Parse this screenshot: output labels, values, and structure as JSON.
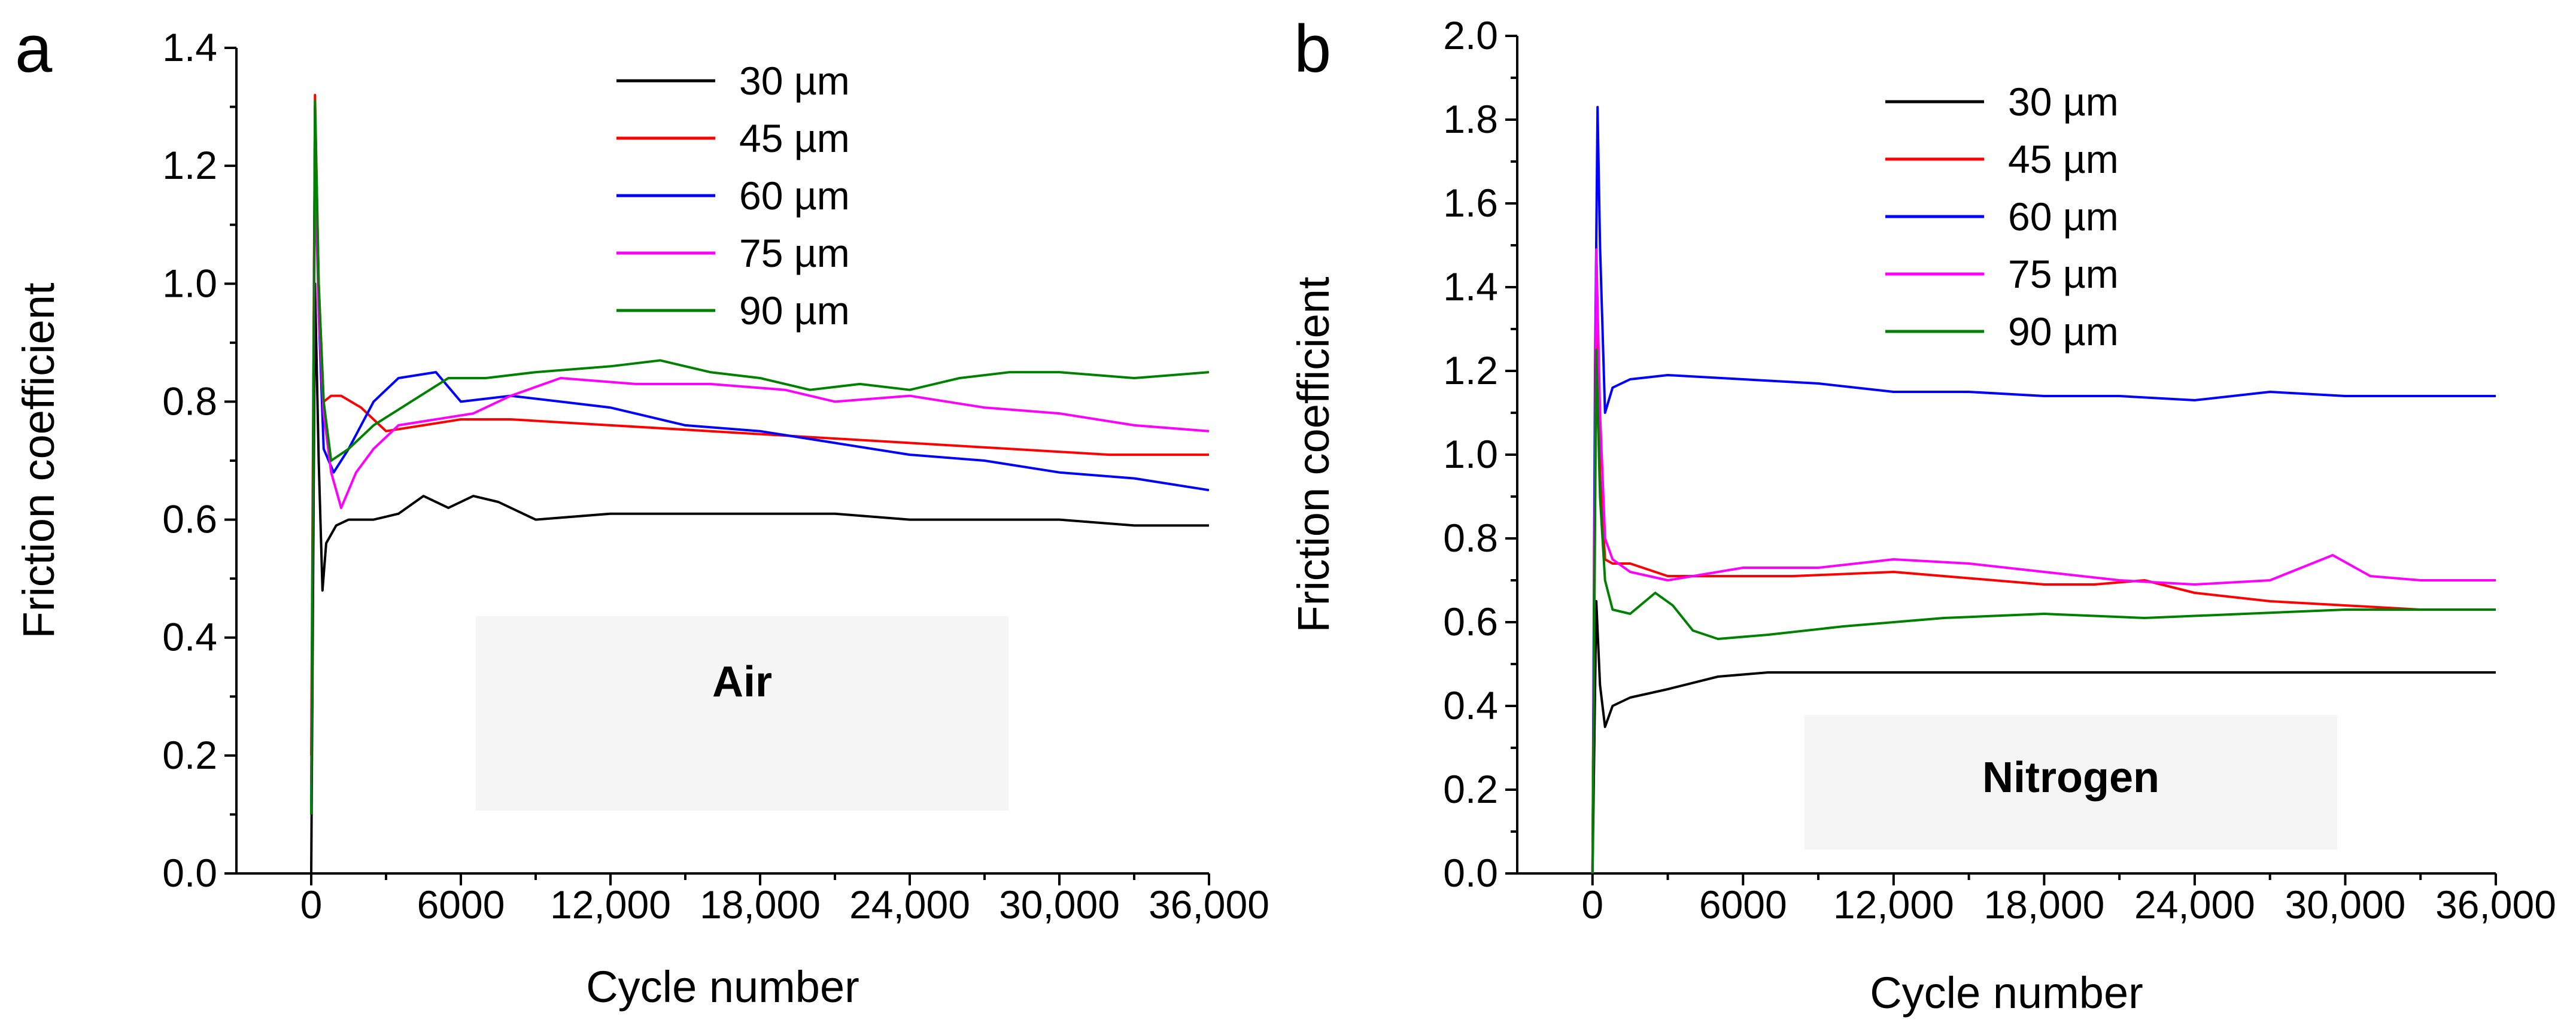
{
  "chart_data": [
    {
      "type": "line",
      "panel": "a",
      "xlabel": "Cycle number",
      "ylabel": "Friction coefficient",
      "xlim": [
        -3000,
        36000
      ],
      "ylim": [
        0,
        1.4
      ],
      "xticks": [
        0,
        6000,
        12000,
        18000,
        24000,
        30000,
        36000
      ],
      "xtick_labels": [
        "0",
        "6000",
        "12,000",
        "18,000",
        "24,000",
        "30,000",
        "36,000"
      ],
      "yticks": [
        0.0,
        0.2,
        0.4,
        0.6,
        0.8,
        1.0,
        1.2,
        1.4
      ],
      "ytick_labels": [
        "0.0",
        "0.2",
        "0.4",
        "0.6",
        "0.8",
        "1.0",
        "1.2",
        "1.4"
      ],
      "annotation": "Air",
      "legend_position": "top-right",
      "grid": false,
      "series": [
        {
          "name": "30 µm",
          "color": "#000000",
          "x": [
            0,
            150,
            300,
            450,
            600,
            1000,
            1500,
            2500,
            3500,
            4500,
            5500,
            6500,
            7500,
            9000,
            12000,
            15000,
            18000,
            21000,
            24000,
            27000,
            30000,
            33000,
            36000
          ],
          "y": [
            0.0,
            1.0,
            0.7,
            0.48,
            0.56,
            0.59,
            0.6,
            0.6,
            0.61,
            0.64,
            0.62,
            0.64,
            0.63,
            0.6,
            0.61,
            0.61,
            0.61,
            0.61,
            0.6,
            0.6,
            0.6,
            0.59,
            0.59
          ]
        },
        {
          "name": "45 µm",
          "color": "#ff0000",
          "x": [
            0,
            150,
            300,
            500,
            800,
            1200,
            2000,
            3000,
            4500,
            6000,
            8000,
            12000,
            16000,
            20000,
            24000,
            28000,
            32000,
            36000
          ],
          "y": [
            0.2,
            1.32,
            1.0,
            0.8,
            0.81,
            0.81,
            0.79,
            0.75,
            0.76,
            0.77,
            0.77,
            0.76,
            0.75,
            0.74,
            0.73,
            0.72,
            0.71,
            0.71
          ]
        },
        {
          "name": "60 µm",
          "color": "#0000ff",
          "x": [
            0,
            150,
            300,
            500,
            900,
            1500,
            2500,
            3500,
            5000,
            6000,
            8000,
            10000,
            12000,
            15000,
            18000,
            21000,
            24000,
            27000,
            30000,
            33000,
            36000
          ],
          "y": [
            0.1,
            1.3,
            0.95,
            0.72,
            0.68,
            0.72,
            0.8,
            0.84,
            0.85,
            0.8,
            0.81,
            0.8,
            0.79,
            0.76,
            0.75,
            0.73,
            0.71,
            0.7,
            0.68,
            0.67,
            0.65
          ]
        },
        {
          "name": "75 µm",
          "color": "#ff00ff",
          "x": [
            0,
            150,
            300,
            500,
            800,
            1200,
            1800,
            2500,
            3500,
            5000,
            6500,
            8000,
            10000,
            13000,
            16000,
            19000,
            21000,
            24000,
            27000,
            30000,
            33000,
            36000
          ],
          "y": [
            0.15,
            1.2,
            0.95,
            0.78,
            0.68,
            0.62,
            0.68,
            0.72,
            0.76,
            0.77,
            0.78,
            0.81,
            0.84,
            0.83,
            0.83,
            0.82,
            0.8,
            0.81,
            0.79,
            0.78,
            0.76,
            0.75
          ]
        },
        {
          "name": "90 µm",
          "color": "#008000",
          "x": [
            0,
            150,
            300,
            500,
            800,
            1500,
            2500,
            4000,
            5500,
            7000,
            9000,
            12000,
            14000,
            16000,
            18000,
            20000,
            22000,
            24000,
            26000,
            28000,
            30000,
            33000,
            36000
          ],
          "y": [
            0.1,
            1.31,
            1.0,
            0.8,
            0.7,
            0.72,
            0.76,
            0.8,
            0.84,
            0.84,
            0.85,
            0.86,
            0.87,
            0.85,
            0.84,
            0.82,
            0.83,
            0.82,
            0.84,
            0.85,
            0.85,
            0.84,
            0.85
          ]
        }
      ]
    },
    {
      "type": "line",
      "panel": "b",
      "xlabel": "Cycle number",
      "ylabel": "Friction coefficient",
      "xlim": [
        -3000,
        36000
      ],
      "ylim": [
        0,
        2.0
      ],
      "xticks": [
        0,
        6000,
        12000,
        18000,
        24000,
        30000,
        36000
      ],
      "xtick_labels": [
        "0",
        "6000",
        "12,000",
        "18,000",
        "24,000",
        "30,000",
        "36,000"
      ],
      "yticks": [
        0.0,
        0.2,
        0.4,
        0.6,
        0.8,
        1.0,
        1.2,
        1.4,
        1.6,
        1.8,
        2.0
      ],
      "ytick_labels": [
        "0.0",
        "0.2",
        "0.4",
        "0.6",
        "0.8",
        "1.0",
        "1.2",
        "1.4",
        "1.6",
        "1.8",
        "2.0"
      ],
      "annotation": "Nitrogen",
      "legend_position": "top-right",
      "grid": false,
      "series": [
        {
          "name": "30 µm",
          "color": "#000000",
          "x": [
            0,
            150,
            300,
            500,
            800,
            1500,
            3000,
            5000,
            7000,
            10000,
            14000,
            18000,
            22000,
            26000,
            30000,
            36000
          ],
          "y": [
            0.0,
            0.65,
            0.45,
            0.35,
            0.4,
            0.42,
            0.44,
            0.47,
            0.48,
            0.48,
            0.48,
            0.48,
            0.48,
            0.48,
            0.48,
            0.48
          ]
        },
        {
          "name": "45 µm",
          "color": "#ff0000",
          "x": [
            0,
            150,
            300,
            500,
            800,
            1500,
            3000,
            5000,
            8000,
            12000,
            16000,
            18000,
            20000,
            22000,
            24000,
            27000,
            30000,
            33000,
            36000
          ],
          "y": [
            0.0,
            1.5,
            0.95,
            0.75,
            0.74,
            0.74,
            0.71,
            0.71,
            0.71,
            0.72,
            0.7,
            0.69,
            0.69,
            0.7,
            0.67,
            0.65,
            0.64,
            0.63,
            0.63
          ]
        },
        {
          "name": "60 µm",
          "color": "#0000ff",
          "x": [
            0,
            100,
            200,
            300,
            500,
            800,
            1500,
            3000,
            6000,
            9000,
            12000,
            15000,
            18000,
            21000,
            24000,
            27000,
            30000,
            33000,
            36000
          ],
          "y": [
            0.0,
            1.2,
            1.83,
            1.5,
            1.1,
            1.16,
            1.18,
            1.19,
            1.18,
            1.17,
            1.15,
            1.15,
            1.14,
            1.14,
            1.13,
            1.15,
            1.14,
            1.14,
            1.14
          ]
        },
        {
          "name": "75 µm",
          "color": "#ff00ff",
          "x": [
            0,
            150,
            300,
            500,
            800,
            1500,
            3000,
            6000,
            9000,
            12000,
            15000,
            18000,
            21000,
            24000,
            27000,
            29500,
            31000,
            33000,
            36000
          ],
          "y": [
            0.0,
            1.49,
            1.1,
            0.8,
            0.75,
            0.72,
            0.7,
            0.73,
            0.73,
            0.75,
            0.74,
            0.72,
            0.7,
            0.69,
            0.7,
            0.76,
            0.71,
            0.7,
            0.7
          ]
        },
        {
          "name": "90 µm",
          "color": "#008000",
          "x": [
            0,
            150,
            300,
            500,
            800,
            1500,
            2500,
            3200,
            4000,
            5000,
            7000,
            10000,
            14000,
            18000,
            22000,
            26000,
            30000,
            33000,
            36000
          ],
          "y": [
            0.0,
            1.25,
            0.9,
            0.7,
            0.63,
            0.62,
            0.67,
            0.64,
            0.58,
            0.56,
            0.57,
            0.59,
            0.61,
            0.62,
            0.61,
            0.62,
            0.63,
            0.63,
            0.63
          ]
        }
      ]
    }
  ]
}
